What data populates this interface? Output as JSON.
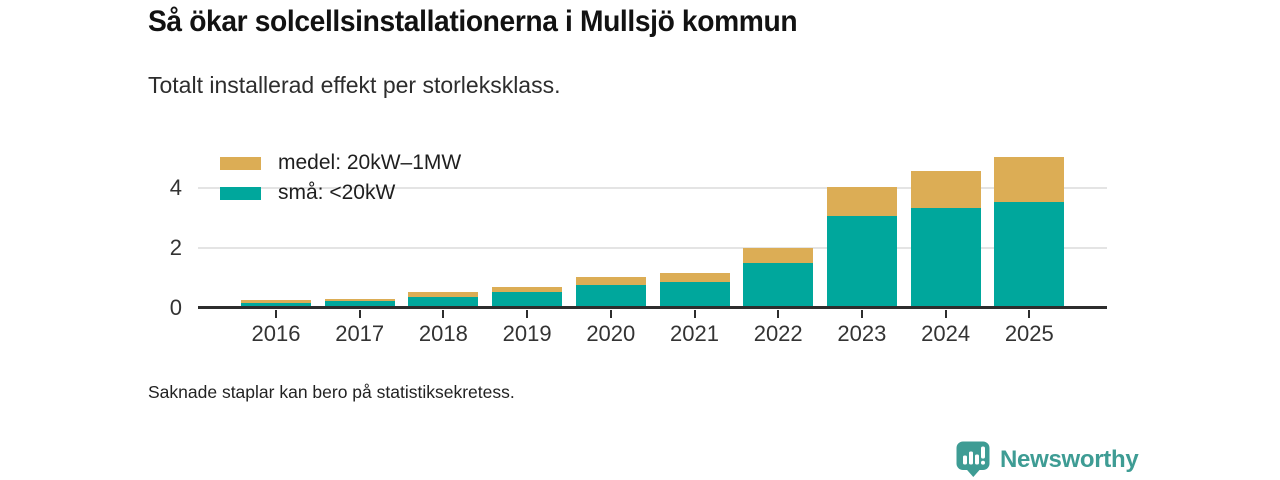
{
  "header": {
    "title": "Så ökar solcellsinstallationerna i Mullsjö kommun",
    "subtitle": "Totalt installerad effekt per storleksklass."
  },
  "footer": {
    "note": "Saknade staplar kan bero på statistiksekretess."
  },
  "logo": {
    "brand": "Newsworthy",
    "icon": "bar-chart-pin-icon",
    "color": "#3e9c94"
  },
  "colors": {
    "small_series": "#00a79c",
    "medium_series": "#dcad55",
    "axis": "#2d2d2d",
    "grid": "#e4e4e4",
    "text": "#333333"
  },
  "chart_data": {
    "type": "bar",
    "stacked": true,
    "title": "Så ökar solcellsinstallationerna i Mullsjö kommun",
    "subtitle": "Totalt installerad effekt per storleksklass.",
    "categories": [
      "2016",
      "2017",
      "2018",
      "2019",
      "2020",
      "2021",
      "2022",
      "2023",
      "2024",
      "2025"
    ],
    "series": [
      {
        "name": "medel: 20kW–1MW",
        "color": "#dcad55",
        "values": [
          0.09,
          0.09,
          0.17,
          0.18,
          0.26,
          0.29,
          0.5,
          0.97,
          1.26,
          1.53
        ]
      },
      {
        "name": "små: <20kW",
        "color": "#00a79c",
        "values": [
          0.18,
          0.22,
          0.38,
          0.52,
          0.76,
          0.88,
          1.5,
          3.08,
          3.32,
          3.52
        ]
      }
    ],
    "stack_totals": [
      0.27,
      0.31,
      0.55,
      0.7,
      1.02,
      1.17,
      2.0,
      4.05,
      4.58,
      5.05
    ],
    "xlabel": "",
    "ylabel": "",
    "yticks": [
      0,
      2,
      4
    ],
    "ylim": [
      0,
      5.6
    ],
    "grid": "horizontal",
    "legend_position": "top-left"
  }
}
